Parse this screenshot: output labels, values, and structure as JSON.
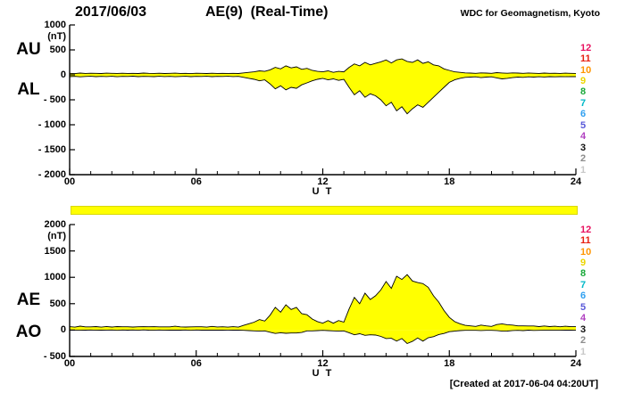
{
  "header": {
    "date": "2017/06/03",
    "title": "AE(9)  (Real-Time)",
    "source": "WDC for Geomagnetism, Kyoto"
  },
  "footer": {
    "created_label": "[Created at 2017-06-04 04:20UT]"
  },
  "stations": {
    "values": [
      "12",
      "11",
      "10",
      "9",
      "8",
      "7",
      "6",
      "5",
      "4",
      "3",
      "2",
      "1"
    ],
    "colors": [
      "#e8115f",
      "#e82010",
      "#ff9500",
      "#edd500",
      "#18a838",
      "#00b8c8",
      "#30a0f0",
      "#5858d8",
      "#b040c0",
      "#101010",
      "#8c8c8c",
      "#c8c8c8"
    ]
  },
  "availability_bar": {
    "fill": "#ffff00",
    "border": "#d8d800"
  },
  "chart_data": [
    {
      "type": "area",
      "panel": "top",
      "left_labels": [
        "AU",
        "AL"
      ],
      "unit": "(nT)",
      "xlabel": "U T",
      "x_range": [
        0,
        24
      ],
      "x_step_hours": 0.25,
      "xticks": [
        {
          "v": 0,
          "label": "00"
        },
        {
          "v": 6,
          "label": "06"
        },
        {
          "v": 12,
          "label": "12"
        },
        {
          "v": 18,
          "label": "18"
        },
        {
          "v": 24,
          "label": "24"
        }
      ],
      "ylim": [
        -2000,
        1000
      ],
      "yticks": [
        {
          "v": 1000,
          "label": "1000"
        },
        {
          "v": 500,
          "label": "500"
        },
        {
          "v": 0,
          "label": "0"
        },
        {
          "v": -500,
          "label": "- 500"
        },
        {
          "v": -1000,
          "label": "- 1000"
        },
        {
          "v": -1500,
          "label": "- 1500"
        },
        {
          "v": -2000,
          "label": "- 2000"
        }
      ],
      "fill_color": "#ffff00",
      "line_color": "#000000",
      "series": [
        {
          "name": "AU",
          "values": [
            30,
            25,
            35,
            28,
            32,
            30,
            26,
            34,
            30,
            28,
            33,
            29,
            31,
            27,
            35,
            30,
            28,
            32,
            26,
            30,
            34,
            28,
            30,
            25,
            32,
            30,
            27,
            33,
            29,
            31,
            28,
            30,
            26,
            40,
            50,
            60,
            80,
            70,
            100,
            150,
            120,
            180,
            140,
            160,
            110,
            130,
            90,
            70,
            60,
            80,
            50,
            70,
            60,
            150,
            220,
            180,
            250,
            200,
            230,
            260,
            300,
            240,
            300,
            320,
            270,
            250,
            300,
            230,
            260,
            200,
            180,
            120,
            90,
            60,
            50,
            40,
            35,
            30,
            40,
            35,
            30,
            45,
            38,
            32,
            40,
            35,
            30,
            38,
            33,
            28,
            35,
            30,
            32,
            28,
            34,
            30,
            28
          ]
        },
        {
          "name": "AL",
          "values": [
            -35,
            -30,
            -40,
            -32,
            -28,
            -36,
            -30,
            -34,
            -28,
            -38,
            -30,
            -33,
            -27,
            -35,
            -30,
            -32,
            -36,
            -28,
            -34,
            -30,
            -38,
            -32,
            -28,
            -35,
            -30,
            -33,
            -29,
            -36,
            -30,
            -32,
            -28,
            -34,
            -30,
            -50,
            -70,
            -90,
            -120,
            -100,
            -180,
            -280,
            -220,
            -300,
            -250,
            -270,
            -200,
            -160,
            -120,
            -90,
            -70,
            -100,
            -80,
            -110,
            -90,
            -250,
            -400,
            -320,
            -450,
            -380,
            -420,
            -500,
            -620,
            -550,
            -720,
            -640,
            -780,
            -680,
            -600,
            -650,
            -550,
            -450,
            -350,
            -250,
            -150,
            -100,
            -70,
            -50,
            -45,
            -40,
            -55,
            -45,
            -40,
            -60,
            -80,
            -70,
            -55,
            -45,
            -50,
            -40,
            -45,
            -38,
            -42,
            -36,
            -40,
            -35,
            -38,
            -34,
            -36
          ]
        }
      ]
    },
    {
      "type": "area",
      "panel": "bottom",
      "left_labels": [
        "AE",
        "AO"
      ],
      "unit": "(nT)",
      "xlabel": "U T",
      "x_range": [
        0,
        24
      ],
      "x_step_hours": 0.25,
      "xticks": [
        {
          "v": 0,
          "label": "00"
        },
        {
          "v": 6,
          "label": "06"
        },
        {
          "v": 12,
          "label": "12"
        },
        {
          "v": 18,
          "label": "18"
        },
        {
          "v": 24,
          "label": "24"
        }
      ],
      "ylim": [
        -500,
        2000
      ],
      "yticks": [
        {
          "v": 2000,
          "label": "2000"
        },
        {
          "v": 1500,
          "label": "1500"
        },
        {
          "v": 1000,
          "label": "1000"
        },
        {
          "v": 500,
          "label": "500"
        },
        {
          "v": 0,
          "label": "0"
        },
        {
          "v": -500,
          "label": "- 500"
        }
      ],
      "fill_color": "#ffff00",
      "line_color": "#000000",
      "series": [
        {
          "name": "AE",
          "values": [
            65,
            55,
            75,
            60,
            60,
            66,
            56,
            68,
            58,
            66,
            63,
            62,
            58,
            62,
            65,
            62,
            64,
            60,
            60,
            60,
            72,
            60,
            58,
            60,
            62,
            63,
            56,
            69,
            59,
            63,
            56,
            64,
            56,
            90,
            120,
            150,
            200,
            170,
            280,
            430,
            340,
            480,
            390,
            430,
            310,
            290,
            210,
            160,
            130,
            180,
            130,
            180,
            150,
            400,
            620,
            500,
            700,
            580,
            650,
            760,
            920,
            790,
            1020,
            960,
            1050,
            930,
            900,
            880,
            810,
            650,
            530,
            370,
            240,
            160,
            120,
            90,
            80,
            70,
            95,
            80,
            70,
            105,
            118,
            102,
            95,
            80,
            80,
            78,
            78,
            66,
            77,
            66,
            72,
            63,
            72,
            64,
            64
          ]
        },
        {
          "name": "AO",
          "values": [
            -3,
            -3,
            -3,
            -2,
            2,
            -3,
            -2,
            0,
            1,
            -5,
            2,
            -2,
            2,
            -4,
            3,
            -1,
            -4,
            2,
            -4,
            0,
            -2,
            -2,
            1,
            -5,
            1,
            -2,
            -1,
            -2,
            -1,
            -1,
            0,
            -2,
            -2,
            -5,
            -10,
            -15,
            -20,
            -15,
            -40,
            -65,
            -50,
            -60,
            -55,
            -55,
            -45,
            -15,
            -15,
            -10,
            -5,
            -10,
            -15,
            -20,
            -15,
            -50,
            -90,
            -70,
            -100,
            -90,
            -95,
            -120,
            -160,
            -155,
            -210,
            -160,
            -255,
            -215,
            -150,
            -210,
            -145,
            -125,
            -85,
            -65,
            -30,
            -20,
            -10,
            -5,
            -5,
            -5,
            -8,
            -5,
            -5,
            -8,
            -21,
            -19,
            -8,
            -5,
            -10,
            -1,
            -6,
            -5,
            -4,
            -3,
            -4,
            -4,
            -2,
            -2,
            -4
          ]
        }
      ]
    }
  ]
}
